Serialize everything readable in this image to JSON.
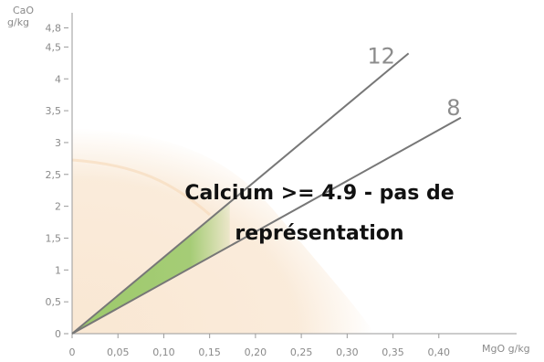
{
  "chart_data": {
    "type": "line",
    "xlabel": "MgO g/kg",
    "ylabel_line1": "CaO",
    "ylabel_line2": "g/kg",
    "xlim": [
      0,
      0.45
    ],
    "ylim": [
      0,
      4.8
    ],
    "x_ticks": [
      0,
      0.05,
      0.1,
      0.15,
      0.2,
      0.25,
      0.3,
      0.35,
      0.4
    ],
    "x_tick_labels": [
      "0",
      "0,05",
      "0,10",
      "0,15",
      "0,20",
      "0,25",
      "0,30",
      "0,35",
      "0,40"
    ],
    "y_ticks": [
      0,
      0.5,
      1,
      1.5,
      2,
      2.5,
      3,
      3.5,
      4,
      4.5,
      4.8
    ],
    "y_tick_labels": [
      "0",
      "0,5",
      "1",
      "1,5",
      "2",
      "2,5",
      "3",
      "3,5",
      "4",
      "4,5",
      "4,8"
    ],
    "series": [
      {
        "name": "12",
        "x": [
          0,
          0.367
        ],
        "y": [
          0,
          4.4
        ]
      },
      {
        "name": "8",
        "x": [
          0,
          0.424
        ],
        "y": [
          0,
          3.39
        ]
      }
    ],
    "highlight_region": {
      "description_color": "#9cc96b",
      "polygon": [
        [
          0,
          0
        ],
        [
          0.172,
          2.06
        ],
        [
          0.172,
          1.37
        ]
      ]
    },
    "background_region_color": "#f8e3cb",
    "annotation_line1": "Calcium >= 4.9 - pas de",
    "annotation_line2": "représentation",
    "colors": {
      "lines": "#777777",
      "axis": "#9a9a9a",
      "highlight": "#9cc96b",
      "background_zone": "#f8e3cb"
    }
  }
}
